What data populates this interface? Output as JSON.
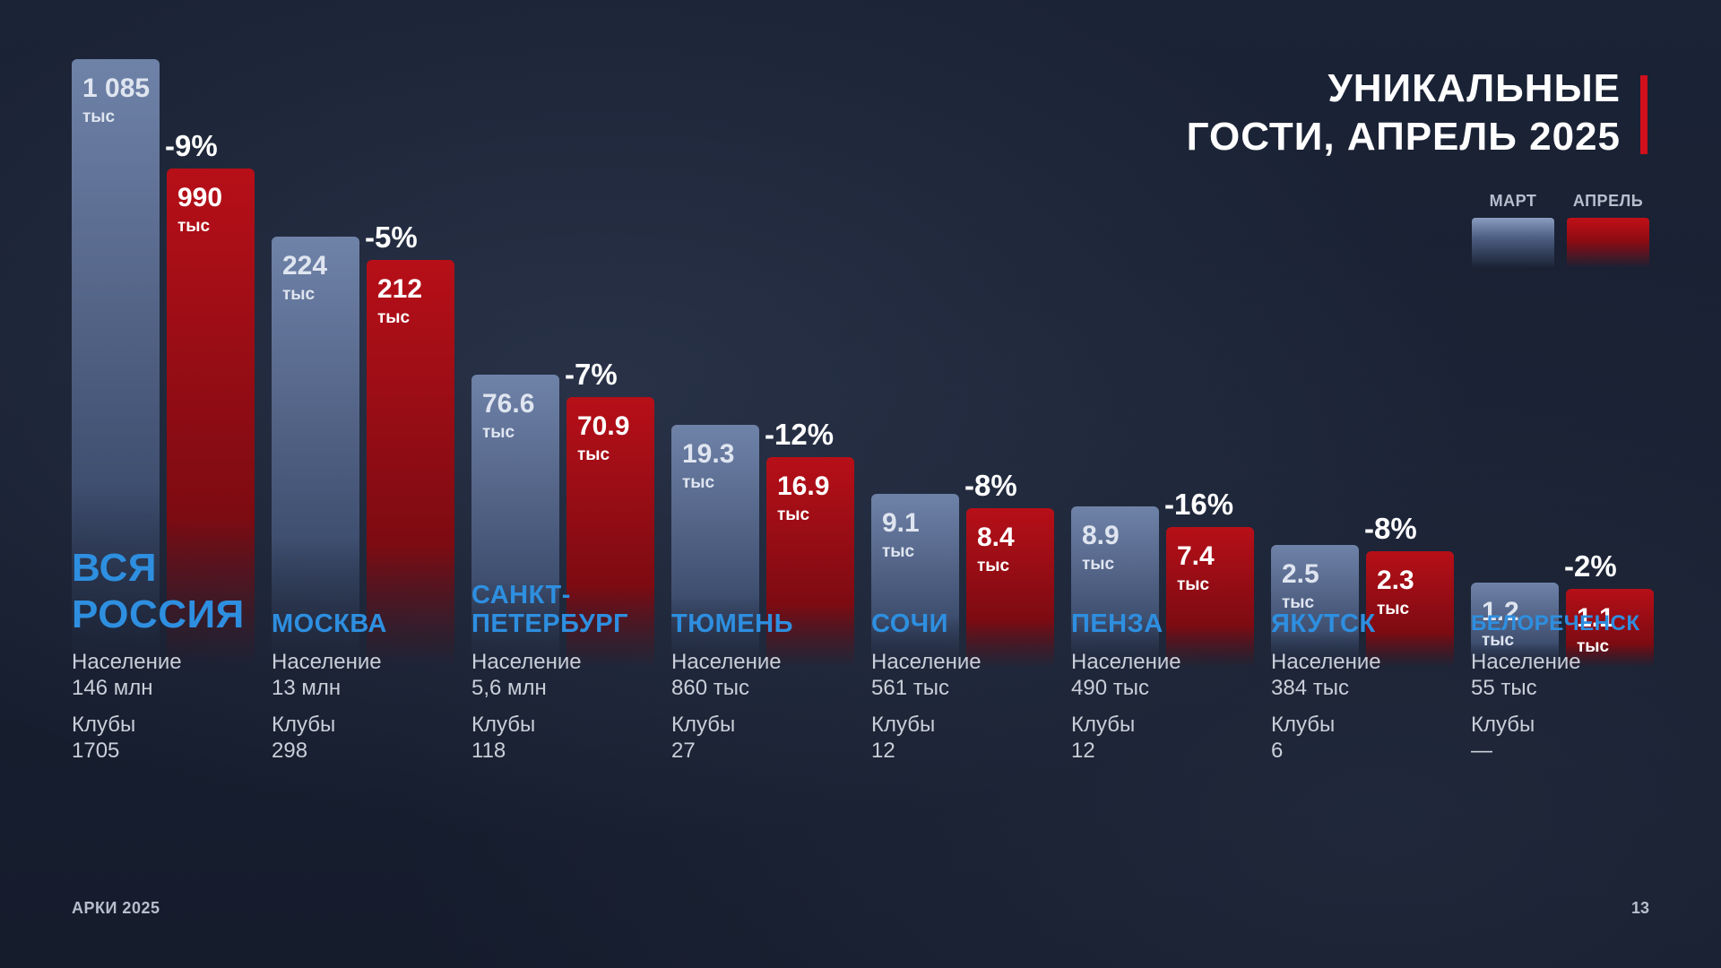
{
  "title_line1": "УНИКАЛЬНЫЕ",
  "title_line2": "ГОСТИ, АПРЕЛЬ 2025",
  "legend": {
    "march": "МАРТ",
    "april": "АПРЕЛЬ"
  },
  "colors": {
    "march": "#6d80a6",
    "april": "#b5101a",
    "city": "#2e8fe0",
    "accent": "#d0101c"
  },
  "population_label": "Население",
  "clubs_label": "Клубы",
  "unit": "тыс",
  "footer_left": "АРКИ 2025",
  "footer_right": "13",
  "chart_data": {
    "type": "bar",
    "title": "УНИКАЛЬНЫЕ ГОСТИ, АПРЕЛЬ 2025",
    "unit": "тыс",
    "categories": [
      "ВСЯ РОССИЯ",
      "МОСКВА",
      "САНКТ-ПЕТЕРБУРГ",
      "ТЮМЕНЬ",
      "СОЧИ",
      "ПЕНЗА",
      "ЯКУТСК",
      "БЕЛОРЕЧЕНСК"
    ],
    "series": [
      {
        "name": "МАРТ",
        "values": [
          1085,
          224,
          76.6,
          19.3,
          9.1,
          8.9,
          2.5,
          1.2
        ],
        "labels": [
          "1 085",
          "224",
          "76.6",
          "19.3",
          "9.1",
          "8.9",
          "2.5",
          "1.2"
        ]
      },
      {
        "name": "АПРЕЛЬ",
        "values": [
          990,
          212,
          70.9,
          16.9,
          8.4,
          7.4,
          2.3,
          1.1
        ],
        "labels": [
          "990",
          "212",
          "70.9",
          "16.9",
          "8.4",
          "7.4",
          "2.3",
          "1.1"
        ]
      }
    ],
    "change": [
      "-9%",
      "-5%",
      "-7%",
      "-12%",
      "-8%",
      "-16%",
      "-8%",
      "-2%"
    ],
    "population": [
      "146 млн",
      "13 млн",
      "5,6 млн",
      "860 тыс",
      "561 тыс",
      "490 тыс",
      "384 тыс",
      "55 тыс"
    ],
    "clubs": [
      "1705",
      "298",
      "118",
      "27",
      "12",
      "12",
      "6",
      "—"
    ]
  }
}
